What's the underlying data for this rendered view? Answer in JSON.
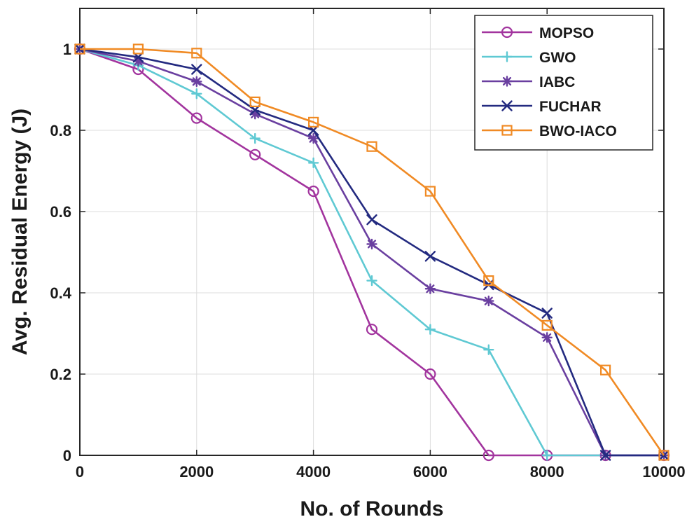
{
  "chart_data": {
    "type": "line",
    "title": "",
    "xlabel": "No. of Rounds",
    "ylabel": "Avg. Residual Energy (J)",
    "xlim": [
      0,
      10000
    ],
    "ylim": [
      0,
      1.1
    ],
    "xticks": [
      0,
      2000,
      4000,
      6000,
      8000,
      10000
    ],
    "yticks": [
      0,
      0.2,
      0.4,
      0.6,
      0.8,
      1
    ],
    "xtick_labels": [
      "0",
      "2000",
      "4000",
      "6000",
      "8000",
      "10000"
    ],
    "ytick_labels": [
      "0",
      "0.2",
      "0.4",
      "0.6",
      "0.8",
      "1"
    ],
    "grid": true,
    "legend_position": "top-right",
    "series": [
      {
        "name": "MOPSO",
        "color": "#a2349e",
        "marker": "circle",
        "x": [
          0,
          1000,
          2000,
          3000,
          4000,
          5000,
          6000,
          7000,
          8000,
          9000,
          10000
        ],
        "y": [
          1.0,
          0.95,
          0.83,
          0.74,
          0.65,
          0.31,
          0.2,
          0.0,
          0.0,
          0.0,
          0.0
        ]
      },
      {
        "name": "GWO",
        "color": "#5fc9d3",
        "marker": "plus",
        "x": [
          0,
          1000,
          2000,
          3000,
          4000,
          5000,
          6000,
          7000,
          8000,
          9000,
          10000
        ],
        "y": [
          1.0,
          0.96,
          0.89,
          0.78,
          0.72,
          0.43,
          0.31,
          0.26,
          0.0,
          0.0,
          0.0
        ]
      },
      {
        "name": "IABC",
        "color": "#6a3fa0",
        "marker": "asterisk",
        "x": [
          0,
          1000,
          2000,
          3000,
          4000,
          5000,
          6000,
          7000,
          8000,
          9000,
          10000
        ],
        "y": [
          1.0,
          0.97,
          0.92,
          0.84,
          0.78,
          0.52,
          0.41,
          0.38,
          0.29,
          0.0,
          0.0
        ]
      },
      {
        "name": "FUCHAR",
        "color": "#232a80",
        "marker": "x",
        "x": [
          0,
          1000,
          2000,
          3000,
          4000,
          5000,
          6000,
          7000,
          8000,
          9000,
          10000
        ],
        "y": [
          1.0,
          0.98,
          0.95,
          0.85,
          0.8,
          0.58,
          0.49,
          0.42,
          0.35,
          0.0,
          0.0
        ]
      },
      {
        "name": "BWO-IACO",
        "color": "#f08a24",
        "marker": "square",
        "x": [
          0,
          1000,
          2000,
          3000,
          4000,
          5000,
          6000,
          7000,
          8000,
          9000,
          10000
        ],
        "y": [
          1.0,
          1.0,
          0.99,
          0.87,
          0.82,
          0.76,
          0.65,
          0.43,
          0.32,
          0.21,
          0.0
        ]
      }
    ]
  }
}
